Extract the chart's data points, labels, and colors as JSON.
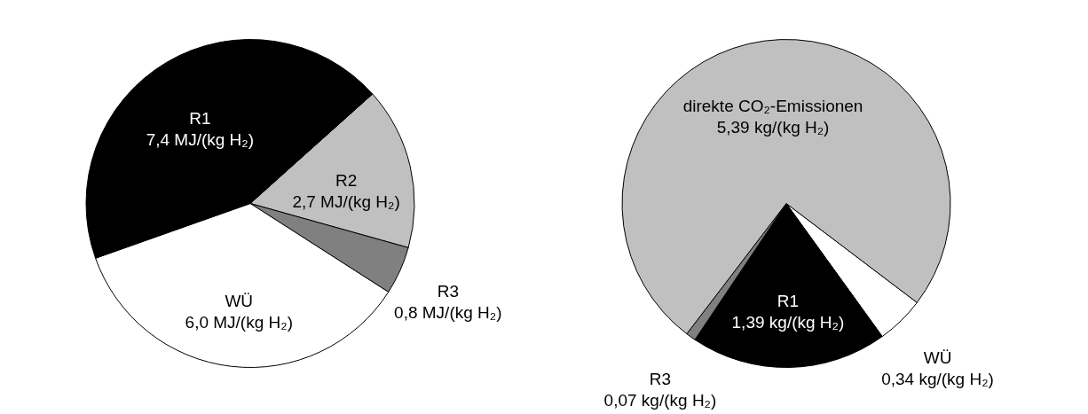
{
  "chart_data": [
    {
      "type": "pie",
      "categories": [
        "R2",
        "R3",
        "WÜ",
        "R1"
      ],
      "values": [
        2.7,
        0.8,
        6.0,
        7.4
      ],
      "colors": [
        "#c0c0c0",
        "#808080",
        "#ffffff",
        "#000000"
      ],
      "value_labels": [
        "2,7 MJ/(kg H₂)",
        "0,8 MJ/(kg H₂)",
        "6,0 MJ/(kg H₂)",
        "7,4 MJ/(kg H₂)"
      ]
    },
    {
      "type": "pie",
      "categories": [
        "WÜ",
        "R1",
        "R3",
        "direkte CO₂-Emissionen"
      ],
      "values": [
        0.34,
        1.39,
        0.07,
        5.39
      ],
      "colors": [
        "#ffffff",
        "#000000",
        "#808080",
        "#c0c0c0"
      ],
      "value_labels": [
        "0,34 kg/(kg H₂)",
        "1,39 kg/(kg H₂)",
        "0,07 kg/(kg H₂)",
        "5,39 kg/(kg H₂)"
      ]
    }
  ]
}
